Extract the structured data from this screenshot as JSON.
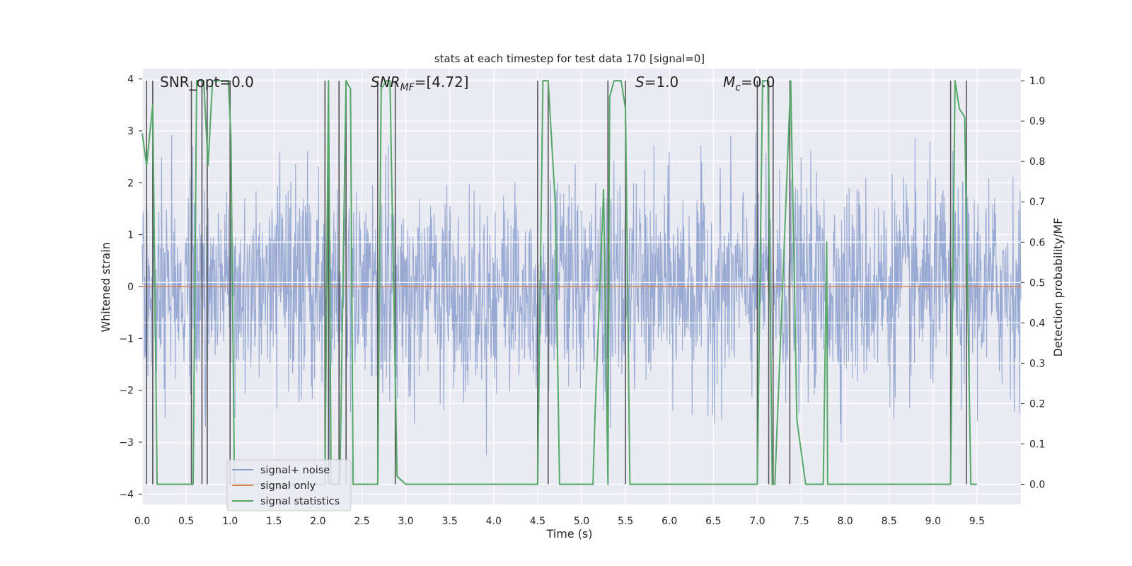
{
  "chart_data": {
    "type": "line",
    "title": "stats at each timestep for test data 170 [signal=0]",
    "xlabel": "Time (s)",
    "ylabel_left": "Whitened strain",
    "ylabel_right": "Detection probability/MF",
    "xlim": [
      0.0,
      10.0
    ],
    "ylim_left": [
      -4.2,
      4.2
    ],
    "ylim_right": [
      -0.05,
      1.03
    ],
    "x_ticks": [
      0.0,
      0.5,
      1.0,
      1.5,
      2.0,
      2.5,
      3.0,
      3.5,
      4.0,
      4.5,
      5.0,
      5.5,
      6.0,
      6.5,
      7.0,
      7.5,
      8.0,
      8.5,
      9.0,
      9.5
    ],
    "x_tick_labels": [
      "0.0",
      "0.5",
      "1.0",
      "1.5",
      "2.0",
      "2.5",
      "3.0",
      "3.5",
      "4.0",
      "4.5",
      "5.0",
      "5.5",
      "6.0",
      "6.5",
      "7.0",
      "7.5",
      "8.0",
      "8.5",
      "9.0",
      "9.5"
    ],
    "y_ticks_left": [
      -4,
      -3,
      -2,
      -1,
      0,
      1,
      2,
      3,
      4
    ],
    "y_tick_labels_left": [
      "−4",
      "−3",
      "−2",
      "−1",
      "0",
      "1",
      "2",
      "3",
      "4"
    ],
    "y_ticks_right": [
      0.0,
      0.1,
      0.2,
      0.3,
      0.4,
      0.5,
      0.6,
      0.7,
      0.8,
      0.9,
      1.0
    ],
    "y_tick_labels_right": [
      "0.0",
      "0.1",
      "0.2",
      "0.3",
      "0.4",
      "0.5",
      "0.6",
      "0.7",
      "0.8",
      "0.9",
      "1.0"
    ],
    "grid": true,
    "legend_position": "lower-left",
    "annotations": [
      {
        "id": "snr-opt",
        "label": "SNR_opt=0.0"
      },
      {
        "id": "snr-mf",
        "label_main": "SNR",
        "label_sub": "MF",
        "label_tail": "=[4.72]"
      },
      {
        "id": "s-value",
        "label_main": "S",
        "label_tail": "=1.0"
      },
      {
        "id": "mc-value",
        "label_main": "M",
        "label_sub": "c",
        "label_tail": "=0.0"
      }
    ],
    "series": [
      {
        "name": "signal+ noise",
        "axis": "left",
        "color": "#8fa3cf",
        "style": "noise",
        "amplitude_std": 1.0
      },
      {
        "name": "signal only",
        "axis": "left",
        "color": "#dd8452",
        "style": "constant",
        "value": 0.0
      },
      {
        "name": "signal statistics",
        "axis": "right",
        "color": "#55a868",
        "x": [
          0.0,
          0.05,
          0.12,
          0.17,
          0.2,
          0.3,
          0.58,
          0.62,
          0.7,
          0.75,
          0.8,
          0.98,
          1.01,
          1.05,
          2.08,
          2.12,
          2.15,
          2.25,
          2.32,
          2.37,
          2.4,
          2.68,
          2.72,
          2.78,
          2.82,
          2.9,
          3.0,
          4.5,
          4.56,
          4.62,
          4.7,
          4.75,
          5.13,
          5.15,
          5.25,
          5.3,
          5.32,
          5.37,
          5.45,
          5.5,
          5.55,
          7.0,
          7.06,
          7.12,
          7.17,
          7.2,
          7.38,
          7.45,
          7.55,
          7.75,
          7.79,
          7.8,
          9.2,
          9.25,
          9.3,
          9.36,
          9.43,
          9.5
        ],
        "y": [
          0.87,
          0.79,
          0.94,
          0.0,
          0.0,
          0.0,
          0.0,
          1.0,
          1.0,
          0.79,
          1.0,
          1.0,
          0.86,
          0.0,
          0.0,
          1.0,
          0.0,
          0.0,
          1.0,
          0.98,
          0.0,
          0.0,
          0.98,
          1.0,
          1.0,
          0.02,
          0.0,
          0.0,
          1.0,
          1.0,
          0.7,
          0.0,
          0.0,
          0.15,
          0.73,
          0.0,
          0.96,
          1.0,
          1.0,
          0.93,
          0.0,
          0.0,
          1.0,
          1.0,
          0.0,
          0.0,
          1.0,
          0.16,
          0.0,
          0.0,
          0.6,
          0.0,
          0.0,
          1.0,
          0.93,
          0.91,
          0.0,
          0.0
        ]
      }
    ],
    "vertical_lines_x": [
      0.05,
      0.12,
      0.56,
      0.68,
      0.74,
      1.0,
      2.08,
      2.12,
      2.24,
      2.32,
      2.68,
      2.88,
      4.5,
      4.62,
      5.3,
      5.5,
      7.0,
      7.13,
      7.18,
      7.37,
      9.2,
      9.38
    ],
    "background_bands_right": [
      0.7,
      0.6,
      0.5,
      0.4,
      0.3
    ]
  }
}
